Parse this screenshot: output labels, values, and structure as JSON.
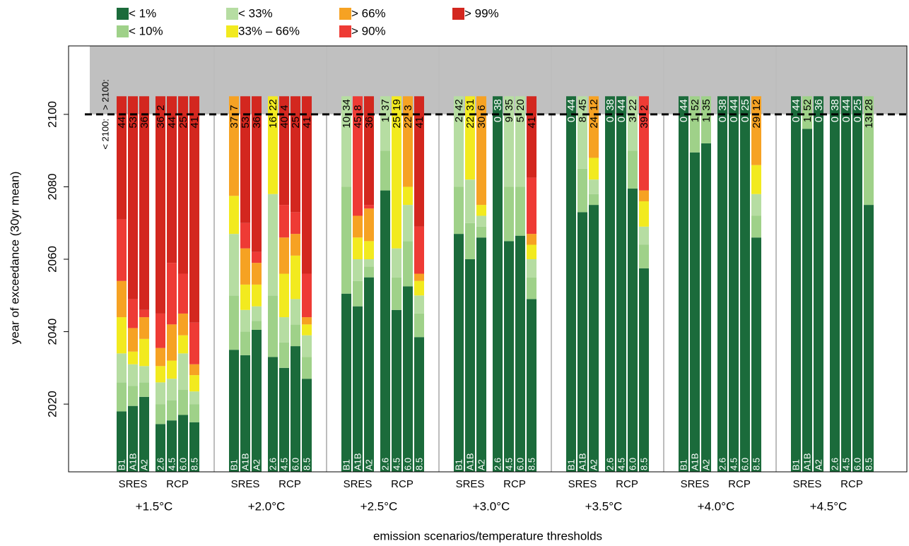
{
  "chart_data": {
    "type": "stacked-threshold-bar",
    "x_label": "emission scenarios/temperature thresholds",
    "y_label": "year of exceedance (30yr mean)",
    "ylim": [
      2001.3,
      2118.9
    ],
    "yticks": [
      2020,
      2040,
      2060,
      2080,
      2100
    ],
    "threshold": 2100,
    "bar_top": 2105,
    "below_label": "< 2100:",
    "above_label": "> 2100:",
    "legend": [
      {
        "name": "< 1%",
        "color": "#1b6b3b"
      },
      {
        "name": "< 10%",
        "color": "#9fd189"
      },
      {
        "name": "< 33%",
        "color": "#b6dda2"
      },
      {
        "name": "33% – 66%",
        "color": "#f2ea1f"
      },
      {
        "name": "> 66%",
        "color": "#f6a223"
      },
      {
        "name": "> 90%",
        "color": "#ee3b35"
      },
      {
        "name": "> 99%",
        "color": "#d3271f"
      }
    ],
    "scenario_sets": [
      {
        "name": "SRES",
        "scenarios": [
          "B1",
          "A1B",
          "A2"
        ]
      },
      {
        "name": "RCP",
        "scenarios": [
          "2.6",
          "4.5",
          "6.0",
          "8.5"
        ]
      }
    ],
    "groups": [
      {
        "label": "+1.5°C",
        "bars": [
          {
            "bounds": [
              2018,
              2026,
              2034,
              2044,
              2054,
              2071
            ],
            "before": 44,
            "after": null
          },
          {
            "bounds": [
              2019.5,
              2025,
              2031,
              2034.5,
              2041,
              2049
            ],
            "before": 53,
            "after": null
          },
          {
            "bounds": [
              2022,
              2026,
              2030.5,
              2038,
              2044,
              2046
            ],
            "before": 36,
            "after": null
          },
          {
            "bounds": [
              2014.5,
              2020,
              2026,
              2030.5,
              2035.5,
              2045
            ],
            "before": 36,
            "after": 2
          },
          {
            "bounds": [
              2015.5,
              2021,
              2027,
              2032,
              2042,
              2059
            ],
            "before": 44,
            "after": null
          },
          {
            "bounds": [
              2017,
              2024,
              2034,
              2039,
              2045,
              2056
            ],
            "before": 25,
            "after": null
          },
          {
            "bounds": [
              2015,
              2020,
              2023.5,
              2028,
              2031,
              2042.5
            ],
            "before": 41,
            "after": null
          }
        ]
      },
      {
        "label": "+2.0°C",
        "bars": [
          {
            "bounds": [
              2035,
              2050,
              2067,
              2077.5,
              2105,
              2105
            ],
            "before": 37,
            "after": 7
          },
          {
            "bounds": [
              2033.5,
              2040,
              2046,
              2053,
              2063,
              2070
            ],
            "before": 53,
            "after": null
          },
          {
            "bounds": [
              2040.5,
              2043,
              2047,
              2053,
              2059,
              2062
            ],
            "before": 36,
            "after": null
          },
          {
            "bounds": [
              2033,
              2050,
              2078,
              2105,
              2105,
              2105
            ],
            "before": 16,
            "after": 22
          },
          {
            "bounds": [
              2030,
              2037,
              2044,
              2056,
              2066,
              2075
            ],
            "before": 40,
            "after": 4
          },
          {
            "bounds": [
              2036,
              2042,
              2049,
              2061,
              2067,
              2073
            ],
            "before": 25,
            "after": null
          },
          {
            "bounds": [
              2027,
              2033,
              2039,
              2042,
              2044,
              2056
            ],
            "before": 41,
            "after": null
          }
        ]
      },
      {
        "label": "+2.5°C",
        "bars": [
          {
            "bounds": [
              2050.5,
              2080,
              2105,
              2105,
              2105,
              2105
            ],
            "before": 10,
            "after": 34
          },
          {
            "bounds": [
              2047,
              2054,
              2060,
              2066,
              2072,
              2105
            ],
            "before": 45,
            "after": 8
          },
          {
            "bounds": [
              2055,
              2058,
              2060,
              2065,
              2074,
              2075
            ],
            "before": 36,
            "after": null
          },
          {
            "bounds": [
              2079,
              2090,
              2105,
              2105,
              2105,
              2105
            ],
            "before": 1,
            "after": 37
          },
          {
            "bounds": [
              2046,
              2055,
              2063,
              2105,
              2105,
              2105
            ],
            "before": 25,
            "after": 19
          },
          {
            "bounds": [
              2052.5,
              2065,
              2075,
              2080,
              2105,
              2105
            ],
            "before": 22,
            "after": 3
          },
          {
            "bounds": [
              2038.5,
              2045,
              2050,
              2054,
              2056,
              2069
            ],
            "before": 41,
            "after": null
          }
        ]
      },
      {
        "label": "+3.0°C",
        "bars": [
          {
            "bounds": [
              2067,
              2080,
              2105,
              2105,
              2105,
              2105
            ],
            "before": 2,
            "after": 42
          },
          {
            "bounds": [
              2060,
              2070,
              2082,
              2105,
              2105,
              2105
            ],
            "before": 22,
            "after": 31
          },
          {
            "bounds": [
              2066,
              2069,
              2072,
              2075,
              2105,
              2105
            ],
            "before": 30,
            "after": 6
          },
          {
            "bounds": [
              2105,
              2105,
              2105,
              2105,
              2105,
              2105
            ],
            "before": 0,
            "after": 38
          },
          {
            "bounds": [
              2065,
              2080,
              2105,
              2105,
              2105,
              2105
            ],
            "before": 9,
            "after": 35
          },
          {
            "bounds": [
              2066.5,
              2080,
              2105,
              2105,
              2105,
              2105
            ],
            "before": 5,
            "after": 20
          },
          {
            "bounds": [
              2049,
              2055,
              2060,
              2064,
              2067,
              2082.5
            ],
            "before": 41,
            "after": null
          }
        ]
      },
      {
        "label": "+3.5°C",
        "bars": [
          {
            "bounds": [
              2105,
              2105,
              2105,
              2105,
              2105,
              2105
            ],
            "before": 0,
            "after": 44
          },
          {
            "bounds": [
              2073,
              2085,
              2105,
              2105,
              2105,
              2105
            ],
            "before": 8,
            "after": 45
          },
          {
            "bounds": [
              2075,
              2078,
              2082,
              2088,
              2105,
              2105
            ],
            "before": 24,
            "after": 12
          },
          {
            "bounds": [
              2105,
              2105,
              2105,
              2105,
              2105,
              2105
            ],
            "before": 0,
            "after": 38
          },
          {
            "bounds": [
              2105,
              2105,
              2105,
              2105,
              2105,
              2105
            ],
            "before": 0,
            "after": 44
          },
          {
            "bounds": [
              2079.5,
              2090,
              2105,
              2105,
              2105,
              2105
            ],
            "before": 3,
            "after": 22
          },
          {
            "bounds": [
              2057.5,
              2064,
              2069,
              2076,
              2079,
              2105
            ],
            "before": 39,
            "after": 2
          }
        ]
      },
      {
        "label": "+4.0°C",
        "bars": [
          {
            "bounds": [
              2105,
              2105,
              2105,
              2105,
              2105,
              2105
            ],
            "before": 0,
            "after": 44
          },
          {
            "bounds": [
              2089.5,
              2105,
              2105,
              2105,
              2105,
              2105
            ],
            "before": 1,
            "after": 52
          },
          {
            "bounds": [
              2092,
              2105,
              2105,
              2105,
              2105,
              2105
            ],
            "before": 1,
            "after": 35
          },
          {
            "bounds": [
              2105,
              2105,
              2105,
              2105,
              2105,
              2105
            ],
            "before": 0,
            "after": 38
          },
          {
            "bounds": [
              2105,
              2105,
              2105,
              2105,
              2105,
              2105
            ],
            "before": 0,
            "after": 44
          },
          {
            "bounds": [
              2105,
              2105,
              2105,
              2105,
              2105,
              2105
            ],
            "before": 0,
            "after": 25
          },
          {
            "bounds": [
              2066,
              2072,
              2078,
              2086,
              2105,
              2105
            ],
            "before": 29,
            "after": 12
          }
        ]
      },
      {
        "label": "+4.5°C",
        "bars": [
          {
            "bounds": [
              2105,
              2105,
              2105,
              2105,
              2105,
              2105
            ],
            "before": 0,
            "after": 44
          },
          {
            "bounds": [
              2096,
              2105,
              2105,
              2105,
              2105,
              2105
            ],
            "before": 1,
            "after": 52
          },
          {
            "bounds": [
              2105,
              2105,
              2105,
              2105,
              2105,
              2105
            ],
            "before": 0,
            "after": 36
          },
          {
            "bounds": [
              2105,
              2105,
              2105,
              2105,
              2105,
              2105
            ],
            "before": 0,
            "after": 38
          },
          {
            "bounds": [
              2105,
              2105,
              2105,
              2105,
              2105,
              2105
            ],
            "before": 0,
            "after": 44
          },
          {
            "bounds": [
              2105,
              2105,
              2105,
              2105,
              2105,
              2105
            ],
            "before": 0,
            "after": 25
          },
          {
            "bounds": [
              2075,
              2105,
              2105,
              2105,
              2105,
              2105
            ],
            "before": 13,
            "after": 28
          }
        ]
      }
    ]
  }
}
